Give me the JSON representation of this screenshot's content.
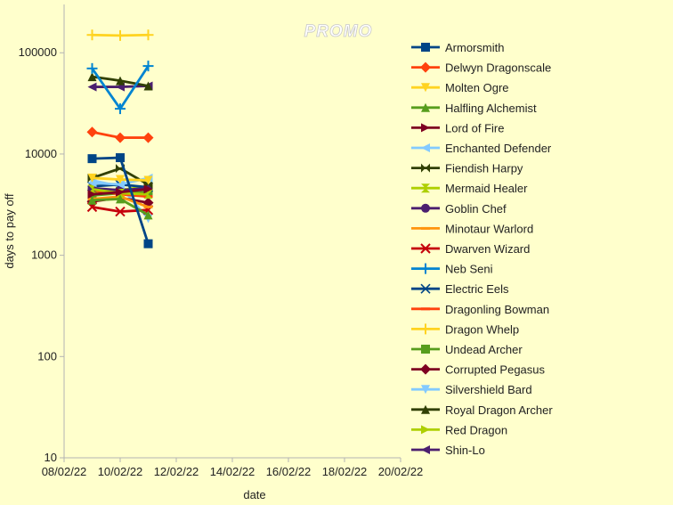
{
  "watermark": "PROMO",
  "chart_data": {
    "type": "line",
    "title": "",
    "xlabel": "date",
    "ylabel": "days to pay off",
    "yscale": "log",
    "ylim": [
      10,
      300000
    ],
    "y_ticks": [
      10,
      100,
      1000,
      10000,
      100000
    ],
    "y_tick_labels": [
      "10",
      "100",
      "1000",
      "10000",
      "100000"
    ],
    "xlim": [
      "08/02/22",
      "20/02/22"
    ],
    "x_ticks": [
      "08/02/22",
      "10/02/22",
      "12/02/22",
      "14/02/22",
      "16/02/22",
      "18/02/22",
      "20/02/22"
    ],
    "x": [
      "09/02/22",
      "10/02/22",
      "11/02/22"
    ],
    "legend_position": "right",
    "grid": false,
    "series": [
      {
        "name": "Armorsmith",
        "color": "#004586",
        "marker": "square",
        "values": [
          9000,
          9200,
          1300
        ]
      },
      {
        "name": "Delwyn Dragonscale",
        "color": "#ff420e",
        "marker": "diamond",
        "values": [
          16500,
          14500,
          14500
        ]
      },
      {
        "name": "Molten Ogre",
        "color": "#ffd320",
        "marker": "triangle-down",
        "values": [
          5800,
          5600,
          5500
        ]
      },
      {
        "name": "Halfling Alchemist",
        "color": "#579d1c",
        "marker": "triangle-up",
        "values": [
          3500,
          3600,
          2500
        ]
      },
      {
        "name": "Lord of Fire",
        "color": "#7e0021",
        "marker": "triangle-right",
        "values": [
          4000,
          4200,
          4500
        ]
      },
      {
        "name": "Enchanted Defender",
        "color": "#83caff",
        "marker": "triangle-left",
        "values": [
          5200,
          5000,
          5800
        ]
      },
      {
        "name": "Fiendish Harpy",
        "color": "#314004",
        "marker": "bowtie",
        "values": [
          5800,
          7200,
          5000
        ]
      },
      {
        "name": "Mermaid Healer",
        "color": "#aecf00",
        "marker": "hourglass",
        "values": [
          4500,
          4100,
          4000
        ]
      },
      {
        "name": "Goblin Chef",
        "color": "#4b1f6f",
        "marker": "circle",
        "values": [
          4600,
          4400,
          4600
        ]
      },
      {
        "name": "Minotaur Warlord",
        "color": "#ff950e",
        "marker": "dash",
        "values": [
          3600,
          3800,
          3000
        ]
      },
      {
        "name": "Dwarven Wizard",
        "color": "#c5000b",
        "marker": "x",
        "values": [
          3000,
          2700,
          2800
        ]
      },
      {
        "name": "Neb Seni",
        "color": "#0084d1",
        "marker": "plus",
        "values": [
          70000,
          28000,
          74000
        ]
      },
      {
        "name": "Electric Eels",
        "color": "#004586",
        "marker": "star",
        "values": [
          4800,
          5000,
          4700
        ]
      },
      {
        "name": "Dragonling Bowman",
        "color": "#ff420e",
        "marker": "dash",
        "values": [
          4400,
          4000,
          3800
        ]
      },
      {
        "name": "Dragon Whelp",
        "color": "#ffd320",
        "marker": "plus",
        "values": [
          150000,
          148000,
          150000
        ]
      },
      {
        "name": "Undead Archer",
        "color": "#579d1c",
        "marker": "square",
        "values": [
          3900,
          4100,
          4200
        ]
      },
      {
        "name": "Corrupted Pegasus",
        "color": "#7e0021",
        "marker": "diamond",
        "values": [
          3400,
          3700,
          3300
        ]
      },
      {
        "name": "Silvershield Bard",
        "color": "#83caff",
        "marker": "triangle-down",
        "values": [
          5500,
          4800,
          2300
        ]
      },
      {
        "name": "Royal Dragon Archer",
        "color": "#314004",
        "marker": "triangle-up",
        "values": [
          58000,
          53000,
          47000
        ]
      },
      {
        "name": "Red Dragon",
        "color": "#aecf00",
        "marker": "triangle-right",
        "values": [
          4200,
          4400,
          4800
        ]
      },
      {
        "name": "Shin-Lo",
        "color": "#4b1f6f",
        "marker": "triangle-left",
        "values": [
          46000,
          46000,
          47000
        ]
      }
    ]
  }
}
